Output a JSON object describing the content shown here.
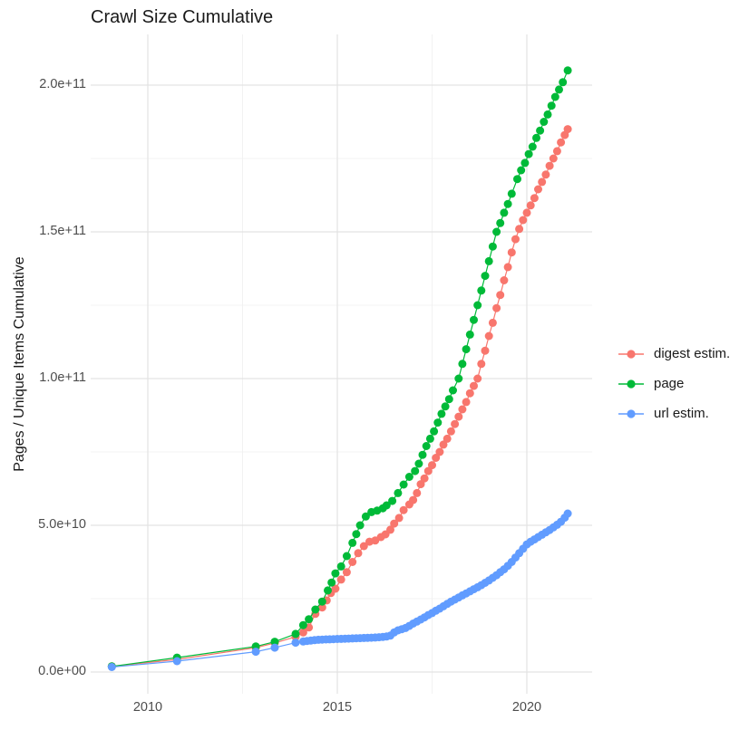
{
  "figure": {
    "title": "Crawl Size Cumulative",
    "background_color": "#FFFFFF"
  },
  "axes": {
    "x": {
      "ticks": [
        {
          "label": "2010",
          "year": 2010
        },
        {
          "label": "2015",
          "year": 2015
        },
        {
          "label": "2020",
          "year": 2020
        }
      ],
      "minor_years": [
        2012.5,
        2017.5
      ]
    },
    "y": {
      "title": "Pages / Unique Items Cumulative",
      "ticks": [
        {
          "label": "0.0e+00",
          "value_billion": 0
        },
        {
          "label": "5.0e+10",
          "value_billion": 50
        },
        {
          "label": "1.0e+11",
          "value_billion": 100
        },
        {
          "label": "1.5e+11",
          "value_billion": 150
        },
        {
          "label": "2.0e+11",
          "value_billion": 200
        }
      ],
      "minor_billions": [
        25,
        75,
        125,
        175
      ]
    }
  },
  "legend": {
    "entries": [
      {
        "label": "digest estim.",
        "color": "#F8766D"
      },
      {
        "label": "page",
        "color": "#00BA38"
      },
      {
        "label": "url estim.",
        "color": "#619CFF"
      }
    ]
  },
  "style": {
    "grid_major_color": "#E3E3E3",
    "grid_minor_color": "#EFEFEF",
    "tick_label_color": "#4D4D4D",
    "title_color": "#1A1A1A"
  },
  "chart_data": {
    "type": "scatter",
    "title": "Crawl Size Cumulative",
    "xlabel": "",
    "ylabel": "Pages / Unique Items Cumulative",
    "x_unit": "year (decimal)",
    "y_unit": "items, values given in billions (1e9)",
    "xlim": [
      2008.5,
      2021.7
    ],
    "ylim_billion": [
      0,
      210
    ],
    "grid": true,
    "legend_position": "right",
    "marker": "point-with-line",
    "series": [
      {
        "id": "digest-estim",
        "name": "digest estim.",
        "color": "#F8766D",
        "points": [
          [
            2009.05,
            1.9
          ],
          [
            2010.77,
            4.3
          ],
          [
            2012.85,
            8.3
          ],
          [
            2013.35,
            9.9
          ],
          [
            2013.9,
            12.0
          ],
          [
            2014.1,
            13.5
          ],
          [
            2014.25,
            15.2
          ],
          [
            2014.42,
            19.8
          ],
          [
            2014.6,
            22.0
          ],
          [
            2014.72,
            24.4
          ],
          [
            2014.83,
            26.9
          ],
          [
            2014.95,
            28.4
          ],
          [
            2015.1,
            31.5
          ],
          [
            2015.25,
            34.0
          ],
          [
            2015.4,
            37.5
          ],
          [
            2015.55,
            40.5
          ],
          [
            2015.7,
            42.9
          ],
          [
            2015.85,
            44.4
          ],
          [
            2016.0,
            44.8
          ],
          [
            2016.15,
            46.0
          ],
          [
            2016.27,
            46.9
          ],
          [
            2016.4,
            48.5
          ],
          [
            2016.5,
            50.6
          ],
          [
            2016.63,
            52.5
          ],
          [
            2016.75,
            55.2
          ],
          [
            2016.9,
            57.1
          ],
          [
            2017.0,
            58.6
          ],
          [
            2017.1,
            61.0
          ],
          [
            2017.2,
            64.0
          ],
          [
            2017.3,
            66.0
          ],
          [
            2017.4,
            68.5
          ],
          [
            2017.5,
            70.5
          ],
          [
            2017.6,
            73.0
          ],
          [
            2017.7,
            75.0
          ],
          [
            2017.8,
            77.5
          ],
          [
            2017.9,
            79.5
          ],
          [
            2018.0,
            82.0
          ],
          [
            2018.1,
            84.5
          ],
          [
            2018.2,
            87.0
          ],
          [
            2018.3,
            89.5
          ],
          [
            2018.4,
            92.0
          ],
          [
            2018.5,
            95.0
          ],
          [
            2018.6,
            97.5
          ],
          [
            2018.7,
            100.0
          ],
          [
            2018.8,
            105.0
          ],
          [
            2018.9,
            109.5
          ],
          [
            2019.0,
            114.5
          ],
          [
            2019.1,
            119.0
          ],
          [
            2019.2,
            124.0
          ],
          [
            2019.3,
            128.5
          ],
          [
            2019.4,
            133.5
          ],
          [
            2019.5,
            138.0
          ],
          [
            2019.6,
            143.0
          ],
          [
            2019.7,
            147.5
          ],
          [
            2019.8,
            151.0
          ],
          [
            2019.9,
            154.0
          ],
          [
            2020.0,
            156.5
          ],
          [
            2020.1,
            159.0
          ],
          [
            2020.2,
            161.5
          ],
          [
            2020.3,
            164.5
          ],
          [
            2020.4,
            167.0
          ],
          [
            2020.5,
            169.5
          ],
          [
            2020.6,
            172.5
          ],
          [
            2020.7,
            175.0
          ],
          [
            2020.8,
            177.5
          ],
          [
            2020.9,
            180.5
          ],
          [
            2021.0,
            183.0
          ],
          [
            2021.08,
            185.0
          ]
        ]
      },
      {
        "id": "page",
        "name": "page",
        "color": "#00BA38",
        "points": [
          [
            2009.05,
            1.9
          ],
          [
            2010.77,
            4.9
          ],
          [
            2012.85,
            8.7
          ],
          [
            2013.35,
            10.3
          ],
          [
            2013.9,
            13.0
          ],
          [
            2014.1,
            16.0
          ],
          [
            2014.25,
            18.0
          ],
          [
            2014.42,
            21.3
          ],
          [
            2014.6,
            24.0
          ],
          [
            2014.75,
            27.8
          ],
          [
            2014.85,
            30.5
          ],
          [
            2014.95,
            33.6
          ],
          [
            2015.1,
            36.0
          ],
          [
            2015.25,
            39.5
          ],
          [
            2015.4,
            44.0
          ],
          [
            2015.5,
            47.0
          ],
          [
            2015.6,
            50.0
          ],
          [
            2015.75,
            53.0
          ],
          [
            2015.9,
            54.5
          ],
          [
            2016.05,
            55.0
          ],
          [
            2016.2,
            55.8
          ],
          [
            2016.3,
            56.8
          ],
          [
            2016.45,
            58.3
          ],
          [
            2016.6,
            61.0
          ],
          [
            2016.75,
            63.9
          ],
          [
            2016.9,
            66.5
          ],
          [
            2017.05,
            68.5
          ],
          [
            2017.15,
            71.0
          ],
          [
            2017.25,
            74.0
          ],
          [
            2017.35,
            77.0
          ],
          [
            2017.45,
            79.5
          ],
          [
            2017.55,
            82.0
          ],
          [
            2017.65,
            85.0
          ],
          [
            2017.75,
            88.0
          ],
          [
            2017.85,
            90.5
          ],
          [
            2017.95,
            93.0
          ],
          [
            2018.05,
            96.0
          ],
          [
            2018.2,
            100.0
          ],
          [
            2018.3,
            105.0
          ],
          [
            2018.4,
            110.0
          ],
          [
            2018.5,
            115.0
          ],
          [
            2018.6,
            120.0
          ],
          [
            2018.7,
            125.0
          ],
          [
            2018.8,
            130.0
          ],
          [
            2018.9,
            135.0
          ],
          [
            2019.0,
            140.0
          ],
          [
            2019.1,
            145.0
          ],
          [
            2019.2,
            150.0
          ],
          [
            2019.3,
            153.0
          ],
          [
            2019.4,
            156.5
          ],
          [
            2019.5,
            159.5
          ],
          [
            2019.6,
            163.0
          ],
          [
            2019.75,
            168.0
          ],
          [
            2019.85,
            171.0
          ],
          [
            2019.95,
            173.5
          ],
          [
            2020.05,
            176.5
          ],
          [
            2020.15,
            179.0
          ],
          [
            2020.25,
            182.0
          ],
          [
            2020.35,
            184.5
          ],
          [
            2020.45,
            187.5
          ],
          [
            2020.55,
            190.0
          ],
          [
            2020.65,
            193.0
          ],
          [
            2020.75,
            196.0
          ],
          [
            2020.85,
            198.5
          ],
          [
            2020.95,
            201.0
          ],
          [
            2021.08,
            205.0
          ]
        ]
      },
      {
        "id": "url-estim",
        "name": "url estim.",
        "color": "#619CFF",
        "points": [
          [
            2009.05,
            1.7
          ],
          [
            2010.77,
            3.7
          ],
          [
            2012.85,
            6.9
          ],
          [
            2013.35,
            8.3
          ],
          [
            2013.9,
            10.0
          ],
          [
            2014.1,
            10.4
          ],
          [
            2014.2,
            10.6
          ],
          [
            2014.3,
            10.7
          ],
          [
            2014.4,
            10.85
          ],
          [
            2014.5,
            11.0
          ],
          [
            2014.6,
            11.05
          ],
          [
            2014.7,
            11.1
          ],
          [
            2014.8,
            11.15
          ],
          [
            2014.9,
            11.2
          ],
          [
            2015.0,
            11.25
          ],
          [
            2015.1,
            11.3
          ],
          [
            2015.2,
            11.35
          ],
          [
            2015.3,
            11.4
          ],
          [
            2015.4,
            11.45
          ],
          [
            2015.5,
            11.5
          ],
          [
            2015.6,
            11.55
          ],
          [
            2015.7,
            11.6
          ],
          [
            2015.8,
            11.65
          ],
          [
            2015.9,
            11.7
          ],
          [
            2016.0,
            11.75
          ],
          [
            2016.1,
            11.85
          ],
          [
            2016.2,
            11.95
          ],
          [
            2016.3,
            12.1
          ],
          [
            2016.4,
            12.4
          ],
          [
            2016.5,
            13.5
          ],
          [
            2016.6,
            14.2
          ],
          [
            2016.7,
            14.6
          ],
          [
            2016.8,
            15.0
          ],
          [
            2016.9,
            15.7
          ],
          [
            2017.0,
            16.5
          ],
          [
            2017.1,
            17.2
          ],
          [
            2017.2,
            17.9
          ],
          [
            2017.3,
            18.6
          ],
          [
            2017.4,
            19.4
          ],
          [
            2017.5,
            20.1
          ],
          [
            2017.6,
            20.9
          ],
          [
            2017.7,
            21.6
          ],
          [
            2017.8,
            22.4
          ],
          [
            2017.9,
            23.2
          ],
          [
            2018.0,
            24.0
          ],
          [
            2018.1,
            24.7
          ],
          [
            2018.2,
            25.4
          ],
          [
            2018.3,
            26.1
          ],
          [
            2018.4,
            26.8
          ],
          [
            2018.5,
            27.5
          ],
          [
            2018.6,
            28.2
          ],
          [
            2018.7,
            28.9
          ],
          [
            2018.8,
            29.6
          ],
          [
            2018.9,
            30.4
          ],
          [
            2019.0,
            31.2
          ],
          [
            2019.1,
            32.1
          ],
          [
            2019.2,
            33.0
          ],
          [
            2019.3,
            34.0
          ],
          [
            2019.4,
            35.0
          ],
          [
            2019.5,
            36.2
          ],
          [
            2019.6,
            37.5
          ],
          [
            2019.7,
            39.0
          ],
          [
            2019.8,
            40.5
          ],
          [
            2019.9,
            42.0
          ],
          [
            2020.0,
            43.5
          ],
          [
            2020.1,
            44.4
          ],
          [
            2020.2,
            45.2
          ],
          [
            2020.3,
            46.0
          ],
          [
            2020.4,
            46.8
          ],
          [
            2020.5,
            47.6
          ],
          [
            2020.6,
            48.4
          ],
          [
            2020.7,
            49.3
          ],
          [
            2020.8,
            50.2
          ],
          [
            2020.9,
            51.2
          ],
          [
            2021.0,
            52.6
          ],
          [
            2021.08,
            54.0
          ]
        ]
      }
    ]
  }
}
